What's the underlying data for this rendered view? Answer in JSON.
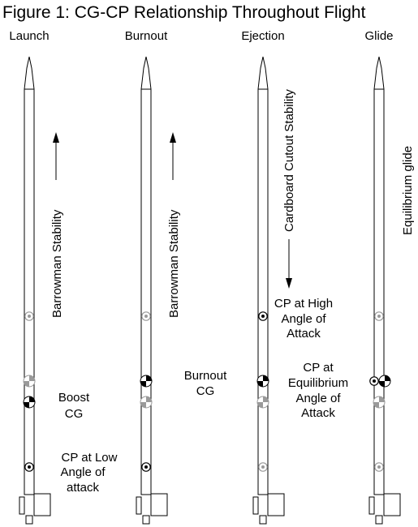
{
  "figure": {
    "title": "Figure 1: CG-CP Relationship Throughout Flight",
    "columns": [
      "Launch",
      "Burnout",
      "Ejection",
      "Glide"
    ]
  },
  "labels": {
    "launch_stability": "Barrowman Stability",
    "burnout_stability": "Barrowman Stability",
    "ejection_stability": "Cardboard Cutout Stability",
    "glide_stability": "Equilibrium glide",
    "boost_cg": [
      "Boost",
      "CG"
    ],
    "cp_low": [
      "CP at Low",
      "Angle of",
      "attack"
    ],
    "burnout_cg": [
      "Burnout",
      "CG"
    ],
    "cp_high": [
      "CP at High",
      "Angle of",
      "Attack"
    ],
    "cp_equilibrium": [
      "CP at",
      "Equilibrium",
      "Angle of",
      "Attack"
    ]
  },
  "colors": {
    "ink": "#000000",
    "inactive_marker": "#9a9a9a",
    "background": "#ffffff"
  },
  "icons": {
    "cg_marker": "cg-checker-icon",
    "cp_marker": "cp-dot-icon",
    "arrow": "arrow-icon"
  }
}
